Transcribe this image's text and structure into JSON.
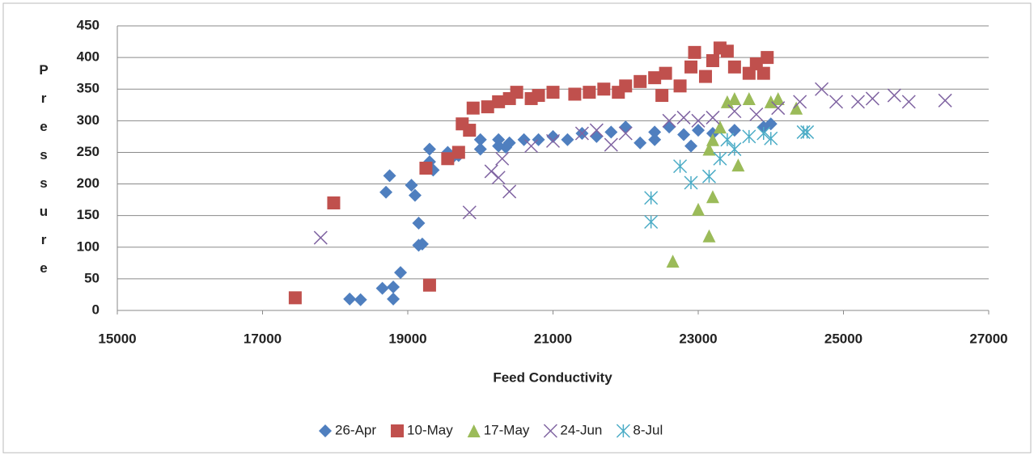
{
  "chart_data": {
    "type": "scatter",
    "x_label": "Feed Conductivity",
    "y_label": "Pressure",
    "xlim": [
      15000,
      27000
    ],
    "xticks": [
      15000,
      17000,
      19000,
      21000,
      23000,
      25000,
      27000
    ],
    "ylim": [
      0,
      450
    ],
    "yticks": [
      0,
      50,
      100,
      150,
      200,
      250,
      300,
      350,
      400,
      450
    ],
    "grid": true,
    "legend": "bottom",
    "series": [
      {
        "name": "26-Apr",
        "color": "#4f7fbf",
        "marker": "diamond",
        "x": [
          18200,
          18350,
          18650,
          18800,
          18800,
          18900,
          18700,
          18750,
          19050,
          19100,
          19150,
          19150,
          19200,
          19300,
          19300,
          19350,
          19550,
          19600,
          19700,
          20000,
          20000,
          20250,
          20250,
          20350,
          20400,
          20600,
          20800,
          21000,
          21200,
          21400,
          21600,
          21800,
          22000,
          22200,
          22400,
          22400,
          22600,
          22800,
          22900,
          23000,
          23200,
          23500,
          23900,
          24000
        ],
        "values": [
          18,
          17,
          35,
          18,
          37,
          60,
          187,
          213,
          198,
          182,
          138,
          103,
          105,
          255,
          235,
          222,
          250,
          240,
          245,
          270,
          255,
          260,
          270,
          258,
          265,
          270,
          270,
          275,
          270,
          280,
          275,
          282,
          290,
          265,
          270,
          282,
          290,
          278,
          260,
          285,
          280,
          285,
          290,
          295
        ]
      },
      {
        "name": "10-May",
        "color": "#c0504d",
        "marker": "square",
        "x": [
          17450,
          17980,
          19250,
          19300,
          19550,
          19700,
          19750,
          19850,
          19900,
          20100,
          20250,
          20400,
          20500,
          20700,
          20800,
          21000,
          21300,
          21500,
          21700,
          21900,
          22000,
          22200,
          22400,
          22500,
          22550,
          22750,
          22900,
          22950,
          23100,
          23200,
          23300,
          23400,
          23500,
          23700,
          23800,
          23900,
          23950
        ],
        "values": [
          20,
          170,
          225,
          40,
          240,
          250,
          295,
          285,
          320,
          322,
          330,
          335,
          345,
          335,
          340,
          345,
          342,
          345,
          350,
          345,
          355,
          362,
          368,
          340,
          375,
          355,
          385,
          408,
          370,
          395,
          415,
          410,
          385,
          375,
          390,
          375,
          400
        ]
      },
      {
        "name": "17-May",
        "color": "#9bbb59",
        "marker": "triangle",
        "x": [
          22650,
          23000,
          23150,
          23200,
          23150,
          23200,
          23300,
          23400,
          23550,
          23500,
          23700,
          24000,
          24100,
          24350
        ],
        "values": [
          78,
          160,
          118,
          180,
          255,
          270,
          290,
          330,
          230,
          335,
          335,
          330,
          335,
          320
        ]
      },
      {
        "name": "24-Jun",
        "color": "#8064a2",
        "marker": "x",
        "x": [
          17800,
          19850,
          20150,
          20250,
          20400,
          20300,
          20700,
          21000,
          21400,
          21600,
          21800,
          22000,
          22600,
          22800,
          23000,
          23200,
          23500,
          23800,
          24100,
          24400,
          24700,
          24900,
          25200,
          25400,
          25700,
          25900,
          26400
        ],
        "values": [
          115,
          155,
          220,
          210,
          188,
          240,
          260,
          268,
          280,
          285,
          262,
          280,
          300,
          305,
          300,
          305,
          315,
          310,
          320,
          330,
          350,
          330,
          330,
          335,
          340,
          330,
          332
        ]
      },
      {
        "name": "8-Jul",
        "color": "#4bacc6",
        "marker": "asterisk",
        "x": [
          22350,
          22350,
          22750,
          22900,
          23150,
          23300,
          23500,
          23700,
          23900,
          24000,
          24450,
          24500,
          23400
        ],
        "values": [
          140,
          178,
          228,
          202,
          212,
          240,
          255,
          275,
          280,
          272,
          282,
          282,
          270
        ]
      }
    ]
  }
}
